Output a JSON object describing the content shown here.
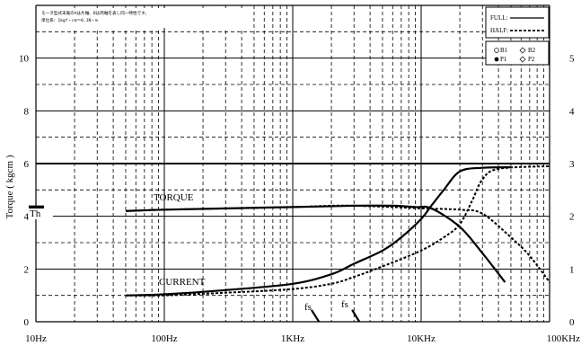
{
  "chart_data": {
    "type": "line",
    "xscale": "log",
    "xlim": [
      10,
      100000
    ],
    "ylim": [
      0,
      12
    ],
    "y2lim": [
      0,
      6
    ],
    "ylabel": "Torque ( kgcm )",
    "x_ticks": [
      {
        "value": 10,
        "label": "10Hz"
      },
      {
        "value": 100,
        "label": "100Hz"
      },
      {
        "value": 1000,
        "label": "1KHz"
      },
      {
        "value": 10000,
        "label": "10KHz"
      },
      {
        "value": 100000,
        "label": "100KHz"
      }
    ],
    "y_ticks": [
      {
        "value": 0,
        "label": "0"
      },
      {
        "value": 2,
        "label": "2"
      },
      {
        "value": 4,
        "label": "4"
      },
      {
        "value": 6,
        "label": "6"
      },
      {
        "value": 8,
        "label": "8"
      },
      {
        "value": 10,
        "label": "10"
      }
    ],
    "y2_ticks": [
      {
        "value": 0,
        "label": "0"
      },
      {
        "value": 1,
        "label": "1"
      },
      {
        "value": 2,
        "label": "2"
      },
      {
        "value": 3,
        "label": "3"
      },
      {
        "value": 4,
        "label": "4"
      },
      {
        "value": 5,
        "label": "5"
      }
    ],
    "note_lines": [
      "モータ型式末尾のAは片軸、Bは両軸を表し同一特性です。",
      "単位系：1kgf・cm＝0.1N・m"
    ],
    "legend": {
      "full": "FULL:",
      "half": "HALF:",
      "items": [
        "B1",
        "B2",
        "P1",
        "P2"
      ]
    },
    "annotations": {
      "th": "Th",
      "torque": "TORQUE",
      "current": "CURRENT",
      "fs1": "fs",
      "fs2": "fs"
    },
    "series": [
      {
        "name": "TORQUE",
        "mode": "FULL",
        "axis": "left",
        "style": "solid",
        "x": [
          50,
          100,
          300,
          1000,
          3000,
          6000,
          9000,
          12000,
          20000,
          30000,
          45000
        ],
        "y": [
          4.2,
          4.25,
          4.3,
          4.35,
          4.4,
          4.4,
          4.35,
          4.3,
          3.6,
          2.6,
          1.5
        ]
      },
      {
        "name": "TORQUE",
        "mode": "HALF",
        "axis": "left",
        "style": "dashed",
        "x": [
          50,
          100,
          300,
          1000,
          2000,
          3000,
          6000,
          10000,
          20000,
          30000,
          50000,
          70000,
          100000
        ],
        "y": [
          4.2,
          4.25,
          4.3,
          4.35,
          4.4,
          4.4,
          4.35,
          4.3,
          4.25,
          4.1,
          3.2,
          2.5,
          1.5
        ]
      },
      {
        "name": "CURRENT",
        "mode": "FULL",
        "axis": "right",
        "style": "solid",
        "x": [
          50,
          100,
          300,
          1000,
          2000,
          3000,
          5000,
          7000,
          10000,
          12000,
          15000,
          20000,
          30000,
          50000
        ],
        "y": [
          0.5,
          0.52,
          0.6,
          0.72,
          0.9,
          1.1,
          1.35,
          1.6,
          1.95,
          2.2,
          2.5,
          2.85,
          2.92,
          2.93
        ]
      },
      {
        "name": "CURRENT",
        "mode": "HALF",
        "axis": "right",
        "style": "dashed",
        "x": [
          50,
          100,
          300,
          1000,
          2000,
          3000,
          5000,
          10000,
          15000,
          20000,
          25000,
          30000,
          40000,
          100000
        ],
        "y": [
          0.5,
          0.5,
          0.55,
          0.62,
          0.72,
          0.85,
          1.05,
          1.35,
          1.6,
          1.85,
          2.3,
          2.7,
          2.9,
          2.95
        ]
      }
    ],
    "th_marker": {
      "x_range": [
        10,
        17
      ],
      "y": 4.35
    },
    "fs_marks": [
      {
        "x": [
          1400,
          1600
        ],
        "y": [
          0.45,
          0.0
        ]
      },
      {
        "x": [
          2900,
          3300
        ],
        "y": [
          0.45,
          0.0
        ]
      }
    ],
    "grid": true
  }
}
